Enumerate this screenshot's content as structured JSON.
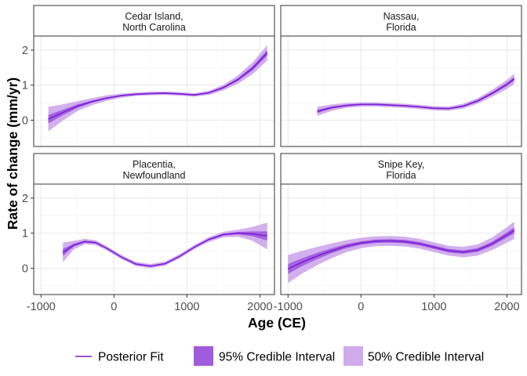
{
  "colors": {
    "line": "#7B1FD6",
    "band_95": "#A05BDE",
    "band_50": "#D0ABEC",
    "strip_fill": "#ffffff",
    "panel_border": "#333333",
    "grid_major": "#EBEBEB",
    "grid_minor": "#F5F5F5"
  },
  "legend": {
    "fit_label": "Posterior Fit",
    "ci95_label": "95% Credible Interval",
    "ci50_label": "50% Credible Interval"
  },
  "chart_data": {
    "type": "line",
    "layout": "facet 2x2, shared x and y axes",
    "xlabel": "Age (CE)",
    "ylabel": "Rate of change (mm/yr)",
    "xlim": [
      -1100,
      2200
    ],
    "ylim": [
      -0.75,
      2.4
    ],
    "x_ticks": [
      -1000,
      0,
      1000,
      2000
    ],
    "x_tick_labels": [
      "-1000",
      "0",
      "1000",
      "2000"
    ],
    "y_ticks": [
      0,
      1,
      2
    ],
    "y_tick_labels": [
      "0",
      "1",
      "2"
    ],
    "grid": true,
    "legend_position": "bottom",
    "panels": [
      {
        "title_lines": [
          "Cedar Island,",
          "North Carolina"
        ],
        "x": [
          -900,
          -700,
          -500,
          -300,
          -100,
          100,
          300,
          500,
          700,
          900,
          1100,
          1300,
          1500,
          1700,
          1900,
          2100
        ],
        "y": [
          0.03,
          0.22,
          0.4,
          0.53,
          0.63,
          0.7,
          0.74,
          0.76,
          0.77,
          0.75,
          0.72,
          0.78,
          0.93,
          1.16,
          1.48,
          1.92
        ],
        "ci95_half": [
          0.35,
          0.23,
          0.14,
          0.1,
          0.08,
          0.06,
          0.05,
          0.05,
          0.05,
          0.05,
          0.05,
          0.06,
          0.08,
          0.12,
          0.17,
          0.22
        ],
        "ci50_half": [
          0.12,
          0.08,
          0.05,
          0.03,
          0.025,
          0.02,
          0.02,
          0.02,
          0.02,
          0.02,
          0.02,
          0.02,
          0.03,
          0.04,
          0.06,
          0.08
        ]
      },
      {
        "title_lines": [
          "Nassau,",
          "Florida"
        ],
        "x": [
          -600,
          -400,
          -200,
          0,
          200,
          400,
          600,
          800,
          1000,
          1200,
          1400,
          1600,
          1800,
          2000,
          2100
        ],
        "y": [
          0.25,
          0.36,
          0.42,
          0.45,
          0.45,
          0.43,
          0.41,
          0.38,
          0.34,
          0.33,
          0.4,
          0.55,
          0.77,
          1.02,
          1.18
        ],
        "ci95_half": [
          0.13,
          0.09,
          0.07,
          0.06,
          0.06,
          0.06,
          0.06,
          0.06,
          0.06,
          0.06,
          0.07,
          0.08,
          0.1,
          0.13,
          0.15
        ],
        "ci50_half": [
          0.045,
          0.03,
          0.025,
          0.02,
          0.02,
          0.02,
          0.02,
          0.02,
          0.02,
          0.02,
          0.025,
          0.03,
          0.035,
          0.045,
          0.05
        ]
      },
      {
        "title_lines": [
          "Placentia,",
          "Newfoundland"
        ],
        "x": [
          -700,
          -550,
          -400,
          -250,
          -100,
          100,
          300,
          500,
          700,
          900,
          1100,
          1300,
          1500,
          1700,
          1900,
          2100
        ],
        "y": [
          0.45,
          0.66,
          0.76,
          0.73,
          0.57,
          0.32,
          0.12,
          0.06,
          0.13,
          0.34,
          0.6,
          0.82,
          0.96,
          1.0,
          0.98,
          0.92
        ],
        "ci95_half": [
          0.28,
          0.12,
          0.08,
          0.07,
          0.06,
          0.06,
          0.06,
          0.06,
          0.06,
          0.06,
          0.06,
          0.07,
          0.08,
          0.1,
          0.2,
          0.38
        ],
        "ci50_half": [
          0.1,
          0.04,
          0.03,
          0.025,
          0.02,
          0.02,
          0.02,
          0.02,
          0.02,
          0.02,
          0.02,
          0.025,
          0.03,
          0.035,
          0.07,
          0.13
        ]
      },
      {
        "title_lines": [
          "Snipe Key,",
          "Florida"
        ],
        "x": [
          -1000,
          -800,
          -600,
          -400,
          -200,
          0,
          200,
          400,
          600,
          800,
          1000,
          1200,
          1400,
          1600,
          1800,
          2000,
          2100
        ],
        "y": [
          -0.02,
          0.18,
          0.35,
          0.5,
          0.63,
          0.72,
          0.77,
          0.78,
          0.76,
          0.7,
          0.6,
          0.5,
          0.46,
          0.52,
          0.7,
          0.95,
          1.08
        ],
        "ci95_half": [
          0.4,
          0.32,
          0.26,
          0.21,
          0.17,
          0.15,
          0.14,
          0.14,
          0.14,
          0.14,
          0.14,
          0.14,
          0.15,
          0.16,
          0.18,
          0.22,
          0.25
        ],
        "ci50_half": [
          0.14,
          0.11,
          0.09,
          0.07,
          0.06,
          0.05,
          0.05,
          0.05,
          0.05,
          0.05,
          0.05,
          0.05,
          0.05,
          0.055,
          0.06,
          0.075,
          0.085
        ]
      }
    ]
  }
}
